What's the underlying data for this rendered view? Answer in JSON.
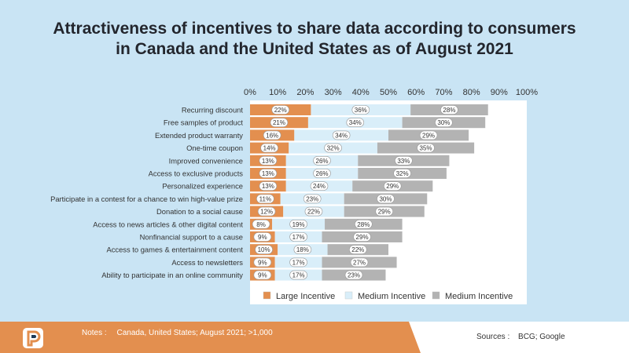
{
  "chart_data": {
    "type": "bar",
    "orientation": "horizontal",
    "stacked": true,
    "title_lines": [
      "Attractiveness of incentives to share data according to consumers",
      "in Canada and the United States as of August 2021"
    ],
    "xlim": [
      0,
      100
    ],
    "x_ticks": [
      "0%",
      "10%",
      "20%",
      "30%",
      "40%",
      "50%",
      "60%",
      "70%",
      "80%",
      "90%",
      "100%"
    ],
    "categories": [
      "Recurring discount",
      "Free samples of product",
      "Extended product warranty",
      "One-time coupon",
      "Improved convenience",
      "Access to exclusive products",
      "Personalized experience",
      "Participate in a contest for a chance to win high-value prize",
      "Donation to a social cause",
      "Access to news articles & other digital content",
      "Nonfinancial support to a cause",
      "Access to games & entertainment content",
      "Access to newsletters",
      "Ability to participate in an online community"
    ],
    "series": [
      {
        "name": "Large Incentive",
        "color": "#e38f4f",
        "values": [
          22,
          21,
          16,
          14,
          13,
          13,
          13,
          11,
          12,
          8,
          9,
          10,
          9,
          9
        ]
      },
      {
        "name": "Medium Incentive",
        "color": "#d9eef9",
        "values": [
          36,
          34,
          34,
          32,
          26,
          26,
          24,
          23,
          22,
          19,
          17,
          18,
          17,
          17
        ]
      },
      {
        "name": "Medium Incentive",
        "color": "#b3b3b3",
        "values": [
          28,
          30,
          29,
          35,
          33,
          32,
          29,
          30,
          29,
          28,
          29,
          22,
          27,
          23
        ]
      }
    ],
    "legend_position": "bottom"
  },
  "footer": {
    "notes_label": "Notes :",
    "notes_text": "Canada, United States; August 2021; >1,000",
    "sources_label": "Sources :",
    "sources_text": "BCG; Google"
  }
}
